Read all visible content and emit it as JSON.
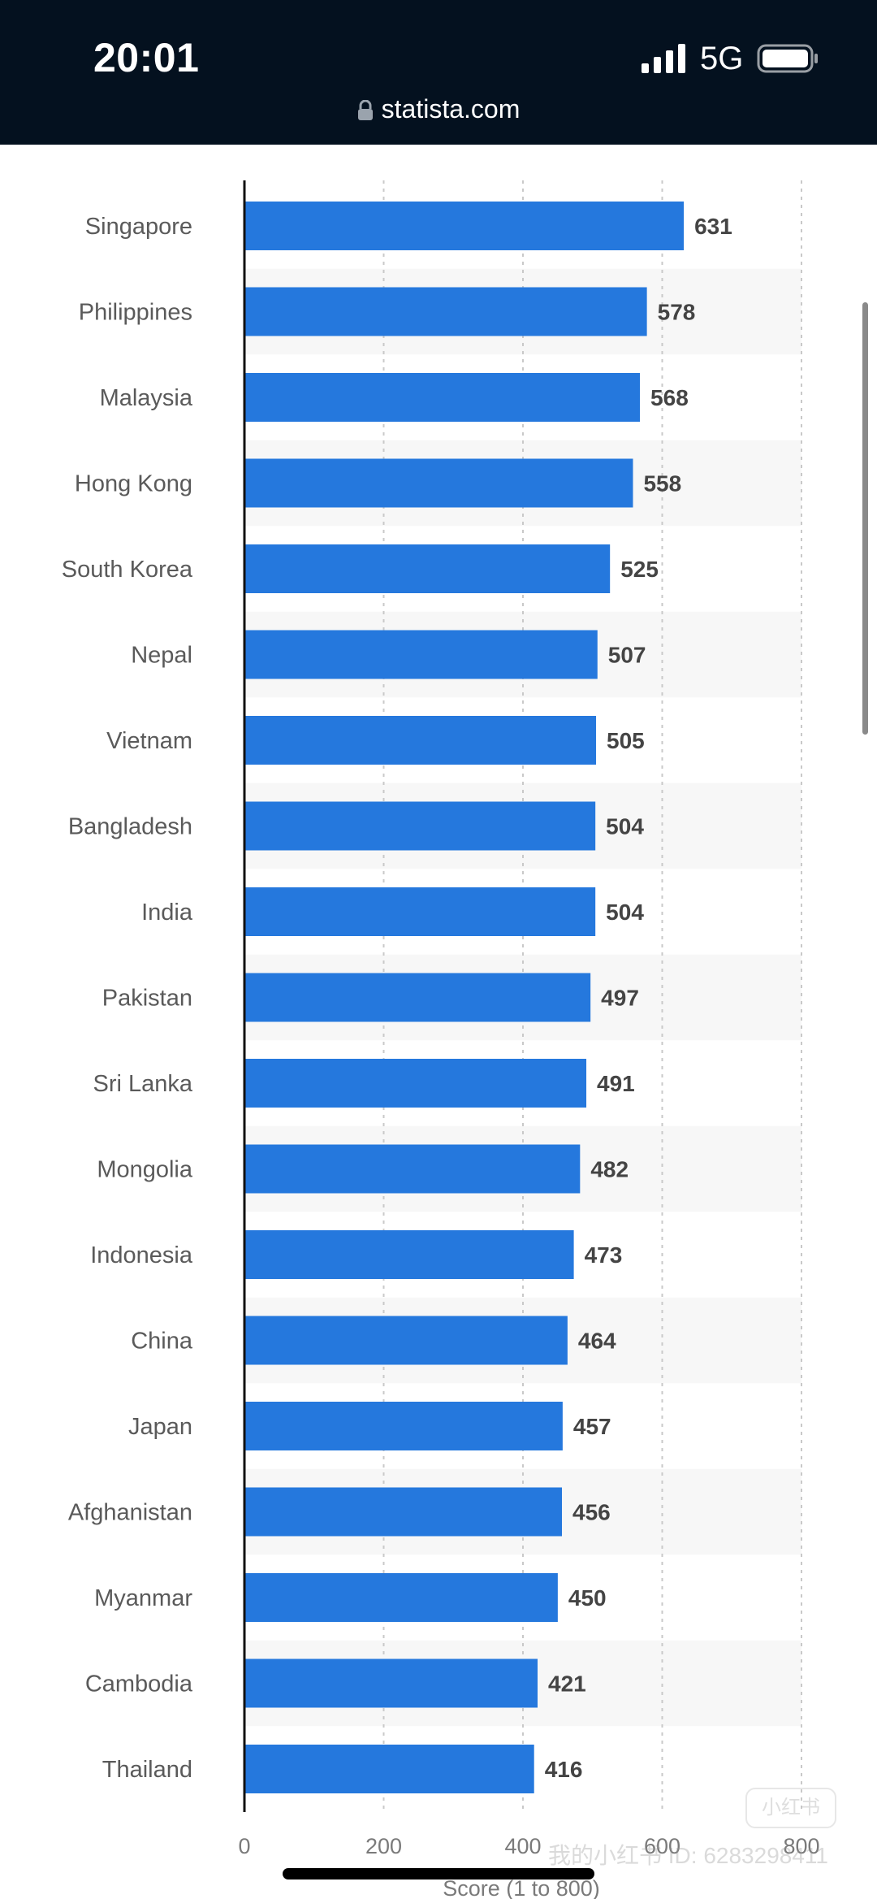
{
  "status_bar": {
    "time": "20:01",
    "network": "5G",
    "url": "statista.com",
    "icons": [
      "signal-icon",
      "battery-icon",
      "lock-icon"
    ]
  },
  "watermark": {
    "text": "我的小红书 ID: 6283298411",
    "logo_text": "小红书"
  },
  "colors": {
    "bar": "#2578dd",
    "status_bar_bg": "#04111f",
    "row_shade": "#f7f7f7",
    "label": "#5a5a5a",
    "value_label": "#444444"
  },
  "chart_data": {
    "type": "bar",
    "orientation": "horizontal",
    "categories": [
      "Singapore",
      "Philippines",
      "Malaysia",
      "Hong Kong",
      "South Korea",
      "Nepal",
      "Vietnam",
      "Bangladesh",
      "India",
      "Pakistan",
      "Sri Lanka",
      "Mongolia",
      "Indonesia",
      "China",
      "Japan",
      "Afghanistan",
      "Myanmar",
      "Cambodia",
      "Thailand"
    ],
    "values": [
      631,
      578,
      568,
      558,
      525,
      507,
      505,
      504,
      504,
      497,
      491,
      482,
      473,
      464,
      457,
      456,
      450,
      421,
      416
    ],
    "value_labels": [
      "631",
      "578",
      "568",
      "558",
      "525",
      "507",
      "505",
      "504",
      "504",
      "497",
      "491",
      "482",
      "473",
      "464",
      "457",
      "456",
      "450",
      "421",
      "416"
    ],
    "xlabel": "Score (1 to 800)",
    "x_ticks": [
      0,
      200,
      400,
      600,
      800
    ],
    "x_tick_labels": [
      "0",
      "200",
      "400",
      "600",
      "800"
    ],
    "xlim": [
      0,
      800
    ],
    "grid": "vertical dotted",
    "legend": "none"
  }
}
